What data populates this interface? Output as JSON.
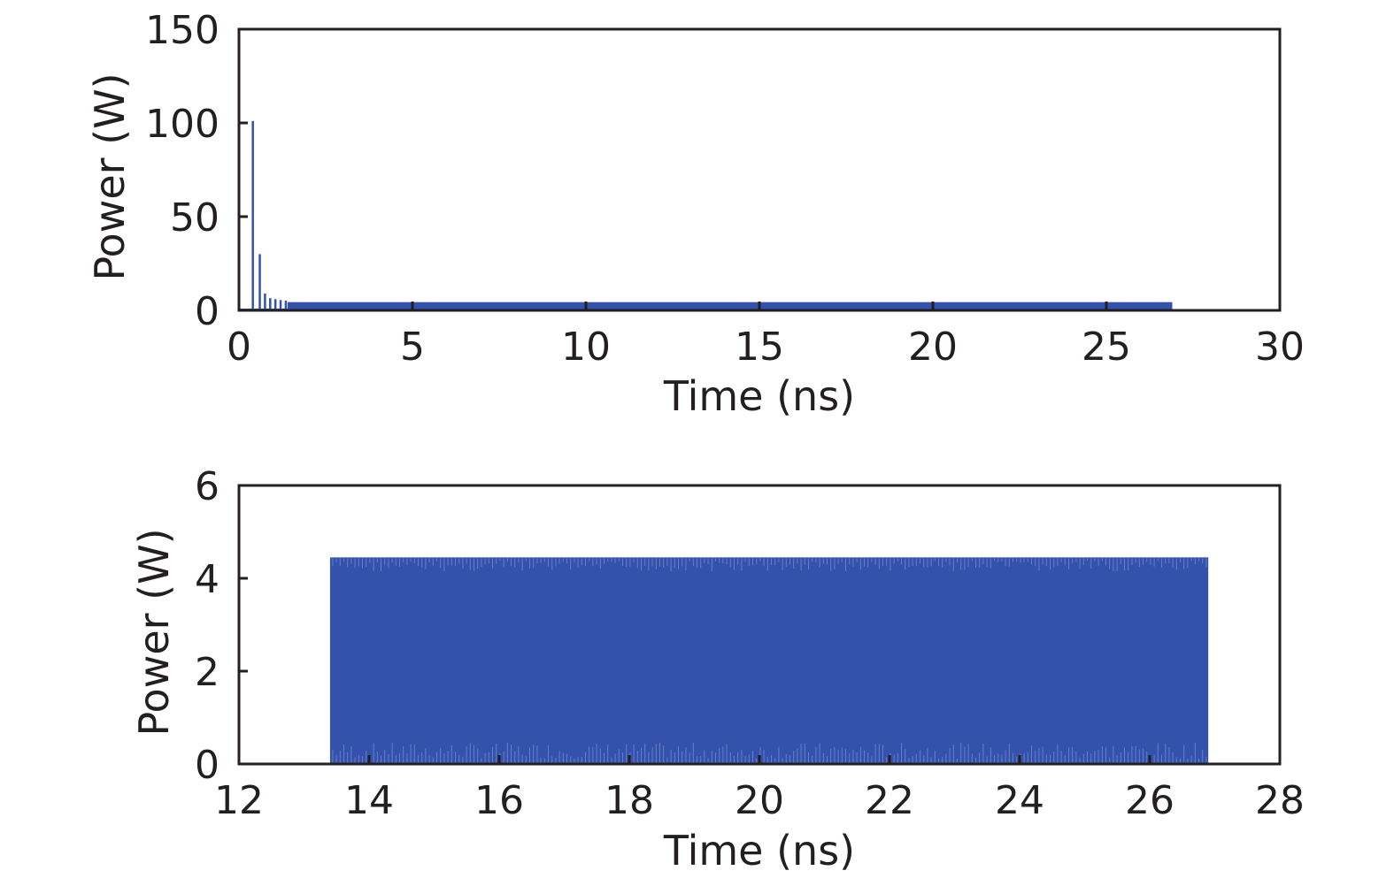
{
  "chart_data": [
    {
      "type": "line",
      "title": "",
      "xlabel": "Time (ns)",
      "ylabel": "Power (W)",
      "xlim": [
        0,
        30
      ],
      "ylim": [
        0,
        150
      ],
      "xticks": [
        0,
        5,
        10,
        15,
        20,
        25,
        30
      ],
      "yticks": [
        0,
        50,
        100,
        150
      ],
      "grid": false,
      "legend": "none",
      "series_color": "#3452ab",
      "peaks": [
        {
          "x": 0.4,
          "y": 101
        },
        {
          "x": 0.6,
          "y": 30
        },
        {
          "x": 0.75,
          "y": 9
        },
        {
          "x": 0.9,
          "y": 6.5
        },
        {
          "x": 1.05,
          "y": 6
        },
        {
          "x": 1.2,
          "y": 5.5
        },
        {
          "x": 1.35,
          "y": 5.2
        }
      ],
      "steady_state": {
        "x_start": 1.4,
        "x_end": 26.9,
        "y_min": 0,
        "y_max": 4.4
      }
    },
    {
      "type": "line",
      "title": "",
      "xlabel": "Time (ns)",
      "ylabel": "Power (W)",
      "xlim": [
        12,
        28
      ],
      "ylim": [
        0,
        6
      ],
      "xticks": [
        12,
        14,
        16,
        18,
        20,
        22,
        24,
        26,
        28
      ],
      "yticks": [
        0,
        2,
        4,
        6
      ],
      "grid": false,
      "legend": "none",
      "series_color": "#3452ab",
      "band": {
        "x_start": 13.4,
        "x_end": 26.9,
        "y_min": 0,
        "y_max": 4.45
      }
    }
  ]
}
